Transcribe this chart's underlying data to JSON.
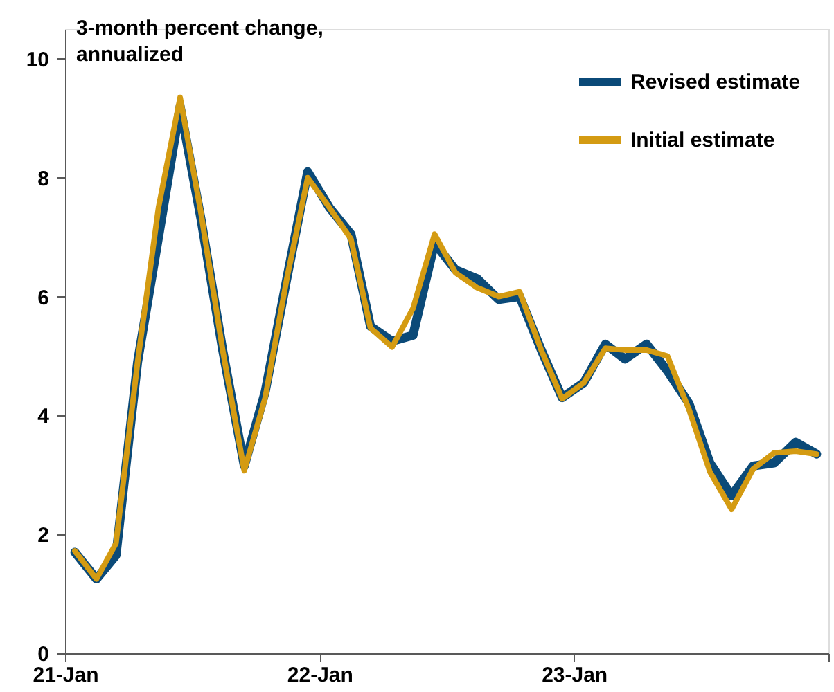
{
  "chart_data": {
    "type": "line",
    "annotations": [
      "3-month percent change, annualized"
    ],
    "x": [
      "2021-01-15",
      "2021-02-15",
      "2021-03-15",
      "2021-04-15",
      "2021-05-15",
      "2021-06-15",
      "2021-07-15",
      "2021-08-15",
      "2021-09-15",
      "2021-10-15",
      "2021-11-15",
      "2021-12-15",
      "2022-01-15",
      "2022-02-15",
      "2022-03-15",
      "2022-04-15",
      "2022-05-15",
      "2022-06-15",
      "2022-07-15",
      "2022-08-15",
      "2022-09-15",
      "2022-10-15",
      "2022-11-15",
      "2022-12-15",
      "2023-01-15",
      "2023-02-15",
      "2023-03-15",
      "2023-04-15",
      "2023-05-15",
      "2023-06-15",
      "2023-07-15",
      "2023-08-15",
      "2023-09-15",
      "2023-10-15",
      "2023-11-15",
      "2023-12-15"
    ],
    "series": [
      {
        "name": "Revised estimate",
        "color": "#0b4a78",
        "values": [
          1.7,
          1.25,
          1.65,
          4.9,
          7.0,
          9.2,
          7.3,
          5.1,
          3.15,
          4.4,
          6.3,
          8.1,
          7.5,
          7.05,
          5.5,
          5.25,
          5.35,
          6.9,
          6.45,
          6.3,
          5.95,
          6.0,
          5.1,
          4.3,
          4.55,
          5.2,
          4.95,
          5.2,
          4.75,
          4.2,
          3.2,
          2.65,
          3.15,
          3.2,
          3.55,
          3.35
        ]
      },
      {
        "name": "Initial estimate",
        "color": "#d49b12",
        "values": [
          1.72,
          1.25,
          1.85,
          4.9,
          7.5,
          9.35,
          7.4,
          5.1,
          3.07,
          4.3,
          6.3,
          8.0,
          7.5,
          6.97,
          5.47,
          5.15,
          5.8,
          7.05,
          6.4,
          6.15,
          6.0,
          6.08,
          5.1,
          4.28,
          4.55,
          5.13,
          5.1,
          5.1,
          5.0,
          4.1,
          3.05,
          2.42,
          3.1,
          3.37,
          3.4,
          3.35
        ]
      }
    ],
    "xlim": [
      "2021-01-01",
      "2024-01-01"
    ],
    "xticks": [
      {
        "value": "2021-01-01",
        "label": "21-Jan"
      },
      {
        "value": "2022-01-01",
        "label": "22-Jan"
      },
      {
        "value": "2023-01-01",
        "label": "23-Jan"
      },
      {
        "value": "2024-01-01",
        "label": null
      }
    ],
    "ylim": [
      0,
      10.5
    ],
    "yticks": [
      0,
      2,
      4,
      6,
      8,
      10
    ],
    "grid": false,
    "legend": "top right",
    "marker": "none",
    "line_style": "solid"
  }
}
